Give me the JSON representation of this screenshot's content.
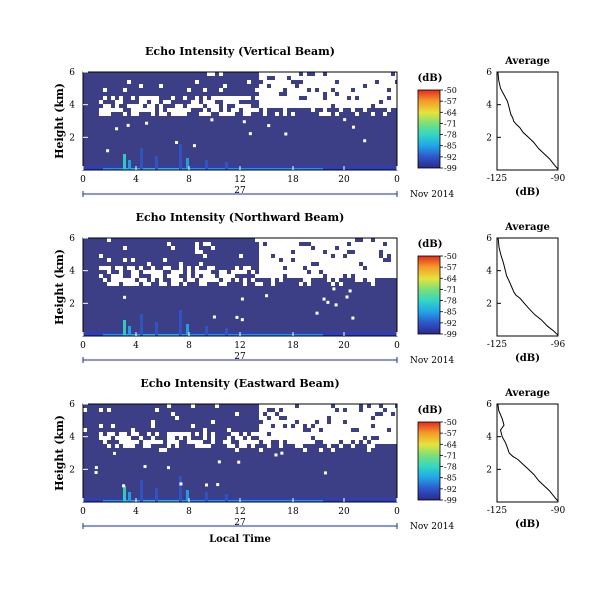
{
  "chart_data": [
    {
      "type": "heatmap",
      "title": "Echo Intensity (Vertical Beam)",
      "ylabel": "Height (km)",
      "ylim": [
        0,
        6
      ],
      "yticks": [
        "6",
        "4",
        "2"
      ],
      "xlim": [
        0,
        30
      ],
      "xticks": [
        "0",
        "4",
        "8",
        "12",
        "18",
        "20",
        "0"
      ],
      "day_label": "27",
      "date_label": "Nov 2014",
      "xlabel": "",
      "colorbar": {
        "label": "(dB)",
        "ticks": [
          "-50",
          "-57",
          "-64",
          "-71",
          "-78",
          "-85",
          "-92",
          "-99"
        ]
      },
      "no_echo_band_km": [
        3.7,
        6.0
      ],
      "average_profile": {
        "title": "Average",
        "xlabel": "(dB)",
        "xticks": [
          "-125",
          "-90"
        ],
        "xlim": [
          -125,
          -90
        ],
        "yticks": [
          "6",
          "4",
          "2"
        ],
        "ylim": [
          0,
          6
        ],
        "x": [
          -124.5,
          -124,
          -123,
          -121,
          -119,
          -118,
          -117,
          -116,
          -115.5,
          -114,
          -112,
          -110,
          -107,
          -104,
          -101,
          -98,
          -95,
          -92,
          -90
        ],
        "y": [
          6.0,
          5.5,
          5.0,
          4.6,
          4.2,
          3.8,
          3.4,
          3.2,
          3.0,
          2.8,
          2.6,
          2.3,
          2.0,
          1.7,
          1.3,
          1.0,
          0.7,
          0.3,
          0.05
        ]
      }
    },
    {
      "type": "heatmap",
      "title": "Echo Intensity (Northward Beam)",
      "ylabel": "Height (km)",
      "ylim": [
        0,
        6
      ],
      "yticks": [
        "6",
        "4",
        "2"
      ],
      "xlim": [
        0,
        30
      ],
      "xticks": [
        "0",
        "4",
        "8",
        "12",
        "18",
        "20",
        "0"
      ],
      "day_label": "27",
      "date_label": "Nov 2014",
      "xlabel": "",
      "colorbar": {
        "label": "(dB)",
        "ticks": [
          "-50",
          "-57",
          "-64",
          "-71",
          "-78",
          "-85",
          "-92",
          "-99"
        ]
      },
      "no_echo_band_km": [
        3.5,
        6.0
      ],
      "average_profile": {
        "title": "Average",
        "xlabel": "(dB)",
        "xticks": [
          "-125",
          "-96"
        ],
        "xlim": [
          -125,
          -96
        ],
        "yticks": [
          "6",
          "4",
          "2"
        ],
        "ylim": [
          0,
          6
        ],
        "x": [
          -124.5,
          -124,
          -123,
          -122,
          -121,
          -120.5,
          -119,
          -118,
          -117,
          -116,
          -114,
          -112,
          -110,
          -107,
          -104,
          -101,
          -98,
          -96
        ],
        "y": [
          6.0,
          5.4,
          4.9,
          4.5,
          4.0,
          3.7,
          3.3,
          3.0,
          2.7,
          2.5,
          2.3,
          2.0,
          1.7,
          1.3,
          1.0,
          0.6,
          0.3,
          0.05
        ]
      }
    },
    {
      "type": "heatmap",
      "title": "Echo Intensity (Eastward Beam)",
      "ylabel": "Height (km)",
      "ylim": [
        0,
        6
      ],
      "yticks": [
        "6",
        "4",
        "2"
      ],
      "xlim": [
        0,
        30
      ],
      "xticks": [
        "0",
        "4",
        "8",
        "12",
        "18",
        "20",
        "0"
      ],
      "day_label": "27",
      "date_label": "Nov 2014",
      "xlabel": "Local Time",
      "colorbar": {
        "label": "(dB)",
        "ticks": [
          "-50",
          "-57",
          "-64",
          "-71",
          "-78",
          "-85",
          "-92",
          "-99"
        ]
      },
      "no_echo_band_km": [
        3.6,
        6.0
      ],
      "average_profile": {
        "title": "Average",
        "xlabel": "(dB)",
        "xticks": [
          "-125",
          "-90"
        ],
        "xlim": [
          -125,
          -90
        ],
        "yticks": [
          "6",
          "4",
          "2"
        ],
        "ylim": [
          0,
          6
        ],
        "x": [
          -124.5,
          -124,
          -122,
          -121,
          -123,
          -122,
          -120,
          -119,
          -118,
          -116,
          -113,
          -110,
          -107,
          -104,
          -101,
          -98,
          -95,
          -92,
          -90
        ],
        "y": [
          6.0,
          5.6,
          5.1,
          4.7,
          4.4,
          4.0,
          3.6,
          3.3,
          3.0,
          2.8,
          2.6,
          2.3,
          2.0,
          1.7,
          1.3,
          1.0,
          0.7,
          0.3,
          0.05
        ]
      }
    }
  ],
  "colors": {
    "background_field": "#3c3f86",
    "colorscale": [
      "#2a2a8c",
      "#2f55c9",
      "#21a7e8",
      "#33d6c4",
      "#79e07a",
      "#e6e33a",
      "#f59a2a",
      "#e42b1f"
    ],
    "axis": "#000000",
    "timeline": "#1a2ab8"
  }
}
